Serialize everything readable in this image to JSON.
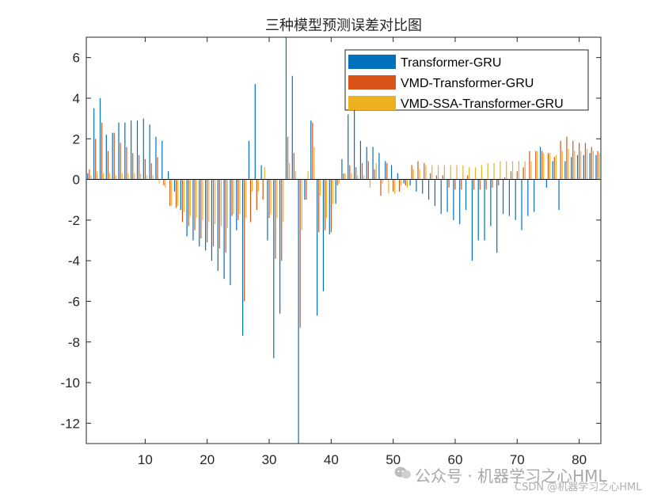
{
  "chart_data": {
    "type": "bar",
    "title": "三种模型预测误差对比图",
    "xlabel": "",
    "ylabel": "",
    "xlim": [
      0.5,
      83.5
    ],
    "ylim": [
      -13,
      7
    ],
    "xticks": [
      10,
      20,
      30,
      40,
      50,
      60,
      70,
      80
    ],
    "yticks": [
      -12,
      -10,
      -8,
      -6,
      -4,
      -2,
      0,
      2,
      4,
      6
    ],
    "legend_position": "top-right",
    "grid": false,
    "categories": [
      1,
      2,
      3,
      4,
      5,
      6,
      7,
      8,
      9,
      10,
      11,
      12,
      13,
      14,
      15,
      16,
      17,
      18,
      19,
      20,
      21,
      22,
      23,
      24,
      25,
      26,
      27,
      28,
      29,
      30,
      31,
      32,
      33,
      34,
      35,
      36,
      37,
      38,
      39,
      40,
      41,
      42,
      43,
      44,
      45,
      46,
      47,
      48,
      49,
      50,
      51,
      52,
      53,
      54,
      55,
      56,
      57,
      58,
      59,
      60,
      61,
      62,
      63,
      64,
      65,
      66,
      67,
      68,
      69,
      70,
      71,
      72,
      73,
      74,
      75,
      76,
      77,
      78,
      79,
      80,
      81,
      82,
      83
    ],
    "series": [
      {
        "name": "Transformer-GRU",
        "color": "#0072BD",
        "values": [
          0.3,
          3.5,
          4.0,
          2.2,
          2.3,
          2.8,
          2.8,
          2.9,
          2.9,
          3.0,
          2.7,
          2.1,
          1.9,
          0.4,
          -0.6,
          -1.5,
          -2.8,
          -3.0,
          -3.3,
          -3.5,
          -4.0,
          -4.5,
          -4.9,
          -5.2,
          -2.5,
          -7.7,
          1.9,
          4.7,
          0.7,
          -3.0,
          -8.8,
          -6.6,
          7.2,
          5.1,
          -13.0,
          -1.0,
          2.9,
          -6.7,
          -5.5,
          -2.7,
          -1.2,
          1.0,
          3.2,
          3.5,
          1.9,
          1.6,
          1.6,
          1.3,
          0.9,
          0.7,
          0.3,
          -0.2,
          -0.3,
          -0.6,
          -0.7,
          -1.0,
          -1.3,
          -1.7,
          -1.6,
          -2.0,
          -2.2,
          -1.5,
          -4.0,
          -3.0,
          -3.0,
          -2.3,
          -3.6,
          -1.7,
          -1.8,
          -2.0,
          -2.5,
          -1.8,
          -1.6,
          1.6,
          -0.4,
          0.9,
          -1.5,
          0.9,
          1.1,
          1.2,
          1.2,
          1.3,
          1.2
        ]
      },
      {
        "name": "VMD-Transformer-GRU",
        "color": "#D95319",
        "values": [
          0.5,
          2.0,
          2.8,
          1.4,
          2.3,
          1.8,
          1.6,
          1.3,
          1.2,
          1.0,
          0.8,
          1.1,
          -0.3,
          -1.3,
          -1.4,
          -2.1,
          -2.3,
          -2.5,
          -2.9,
          -3.1,
          -3.3,
          -3.4,
          -3.6,
          -1.8,
          -2.0,
          -6.0,
          -2.1,
          -1.5,
          -1.0,
          -1.9,
          -3.9,
          -4.0,
          2.1,
          1.3,
          -7.3,
          -1.0,
          2.8,
          -2.6,
          -2.5,
          -2.6,
          -0.3,
          0.3,
          0.7,
          0.6,
          0.8,
          0.9,
          0.5,
          -0.8,
          0.8,
          -0.6,
          -0.6,
          -0.3,
          0.7,
          0.9,
          0.8,
          0.3,
          0.2,
          0.2,
          -0.4,
          -0.5,
          -0.5,
          0.2,
          -0.5,
          -0.5,
          -0.5,
          -0.4,
          -0.3,
          0.1,
          0.4,
          0.4,
          0.6,
          1.4,
          1.4,
          1.4,
          1.3,
          1.1,
          1.9,
          2.1,
          1.9,
          1.8,
          1.8,
          1.6,
          1.4
        ]
      },
      {
        "name": "VMD-SSA-Transformer-GRU",
        "color": "#EDB120",
        "values": [
          0.2,
          0.4,
          0.3,
          0.3,
          0.2,
          0.3,
          0.3,
          0.3,
          0.3,
          0.2,
          0.2,
          -0.2,
          -0.4,
          -1.3,
          -1.3,
          -1.6,
          -1.8,
          -1.9,
          -2.0,
          -2.1,
          -2.2,
          -2.3,
          -2.4,
          -1.7,
          -1.7,
          -1.9,
          -0.6,
          -0.6,
          0.6,
          -1.7,
          -1.9,
          -2.1,
          0.8,
          0.4,
          -2.5,
          0.4,
          1.6,
          -0.8,
          -1.9,
          -1.2,
          -0.2,
          0.3,
          0.3,
          0.2,
          0.2,
          -0.4,
          0.8,
          -0.2,
          -0.7,
          -0.7,
          -0.3,
          -0.4,
          0.5,
          0.5,
          0.7,
          0.7,
          0.7,
          0.7,
          0.7,
          0.7,
          0.7,
          0.6,
          0.6,
          0.7,
          0.8,
          0.8,
          0.9,
          0.9,
          0.9,
          0.9,
          0.9,
          0.9,
          1.4,
          1.3,
          1.3,
          1.2,
          1.4,
          1.5,
          1.4,
          1.4,
          1.5,
          1.4,
          1.3
        ]
      }
    ]
  },
  "watermark": {
    "main": "公众号 · 机器学习之心HML",
    "sub": "CSDN @机器学习之心HML"
  }
}
